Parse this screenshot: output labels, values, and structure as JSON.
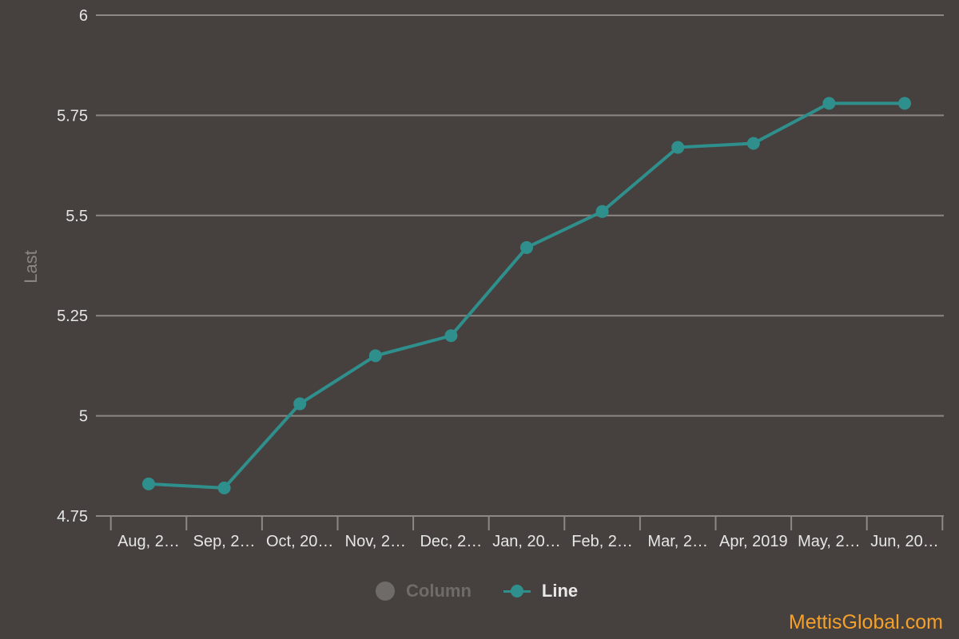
{
  "colors": {
    "background": "#46413e",
    "line": "#2f8f8c",
    "grid": "#8c8884",
    "column_legend_hidden": "#6f6b68",
    "brand": "#f5a02b"
  },
  "legend": {
    "column_label": "Column",
    "line_label": "Line"
  },
  "brand": {
    "text": "MettisGlobal.com"
  },
  "chart_data": {
    "type": "line",
    "ylabel": "Last",
    "ylim": [
      4.75,
      6
    ],
    "y_ticks": [
      "4.75",
      "5",
      "5.25",
      "5.5",
      "5.75",
      "6"
    ],
    "categories": [
      "Aug, 2…",
      "Sep, 2…",
      "Oct, 20…",
      "Nov, 2…",
      "Dec, 2…",
      "Jan, 20…",
      "Feb, 2…",
      "Mar, 2…",
      "Apr, 2019",
      "May, 2…",
      "Jun, 20…"
    ],
    "series": [
      {
        "name": "Line",
        "values": [
          4.83,
          4.82,
          5.03,
          5.15,
          5.2,
          5.42,
          5.51,
          5.67,
          5.68,
          5.78,
          5.78
        ]
      }
    ],
    "hidden_series": [
      "Column"
    ],
    "grid": true,
    "legend_position": "bottom-center"
  }
}
